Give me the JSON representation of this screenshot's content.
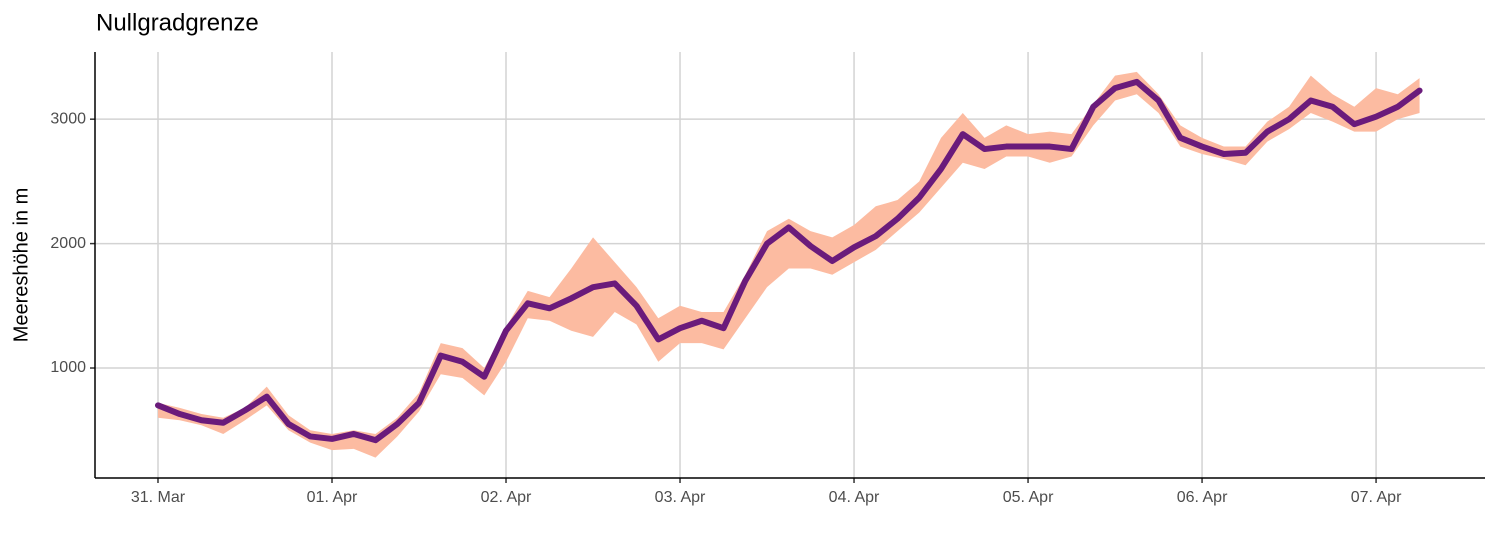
{
  "chart_data": {
    "type": "line",
    "title": "Nullgradgrenze",
    "y_label": "Meereshöhe in m",
    "x": [
      0,
      0.125,
      0.25,
      0.375,
      0.5,
      0.625,
      0.75,
      0.875,
      1,
      1.125,
      1.25,
      1.375,
      1.5,
      1.625,
      1.75,
      1.875,
      2,
      2.125,
      2.25,
      2.375,
      2.5,
      2.625,
      2.75,
      2.875,
      3,
      3.125,
      3.25,
      3.375,
      3.5,
      3.625,
      3.75,
      3.875,
      4,
      4.125,
      4.25,
      4.375,
      4.5,
      4.625,
      4.75,
      4.875,
      5,
      5.125,
      5.25,
      5.375,
      5.5,
      5.625,
      5.75,
      5.875,
      6,
      6.125,
      6.25,
      6.375,
      6.5,
      6.625,
      6.75,
      6.875,
      7,
      7.125,
      7.25
    ],
    "values": [
      700,
      630,
      580,
      560,
      660,
      770,
      550,
      450,
      430,
      470,
      420,
      550,
      720,
      1100,
      1050,
      930,
      1300,
      1520,
      1480,
      1560,
      1650,
      1680,
      1500,
      1230,
      1320,
      1380,
      1320,
      1700,
      2000,
      2130,
      1980,
      1860,
      1970,
      2060,
      2200,
      2370,
      2600,
      2880,
      2760,
      2780,
      2780,
      2780,
      2760,
      3100,
      3250,
      3300,
      3150,
      2850,
      2780,
      2720,
      2730,
      2900,
      3000,
      3150,
      3100,
      2960,
      3020,
      3100,
      3230
    ],
    "lower": [
      600,
      580,
      540,
      470,
      580,
      700,
      500,
      400,
      340,
      350,
      280,
      450,
      650,
      950,
      920,
      780,
      1050,
      1400,
      1380,
      1300,
      1250,
      1450,
      1350,
      1050,
      1200,
      1200,
      1150,
      1400,
      1650,
      1800,
      1800,
      1750,
      1850,
      1950,
      2100,
      2250,
      2450,
      2650,
      2600,
      2700,
      2700,
      2650,
      2700,
      2950,
      3150,
      3200,
      3050,
      2780,
      2720,
      2680,
      2630,
      2820,
      2920,
      3050,
      2980,
      2900,
      2900,
      3000,
      3050
    ],
    "upper": [
      720,
      680,
      630,
      600,
      680,
      850,
      620,
      500,
      470,
      500,
      470,
      600,
      800,
      1200,
      1160,
      1000,
      1330,
      1620,
      1570,
      1800,
      2050,
      1850,
      1650,
      1400,
      1500,
      1450,
      1450,
      1750,
      2100,
      2200,
      2100,
      2050,
      2150,
      2300,
      2350,
      2500,
      2850,
      3050,
      2850,
      2950,
      2880,
      2900,
      2880,
      3120,
      3350,
      3380,
      3200,
      2950,
      2850,
      2780,
      2780,
      2980,
      3100,
      3350,
      3200,
      3100,
      3250,
      3200,
      3330
    ],
    "color": "#6a1b7b",
    "band_color": "#fcbba1",
    "xlim": [
      -0.362,
      7.626
    ],
    "xticks": [
      {
        "value": 0,
        "label": "31. Mar"
      },
      {
        "value": 1,
        "label": "01. Apr"
      },
      {
        "value": 2,
        "label": "02. Apr"
      },
      {
        "value": 3,
        "label": "03. Apr"
      },
      {
        "value": 4,
        "label": "04. Apr"
      },
      {
        "value": 5,
        "label": "05. Apr"
      },
      {
        "value": 6,
        "label": "06. Apr"
      },
      {
        "value": 7,
        "label": "07. Apr"
      }
    ],
    "ylim": [
      116,
      3540
    ],
    "yticks": [
      1000,
      2000,
      3000
    ],
    "grid": true
  }
}
